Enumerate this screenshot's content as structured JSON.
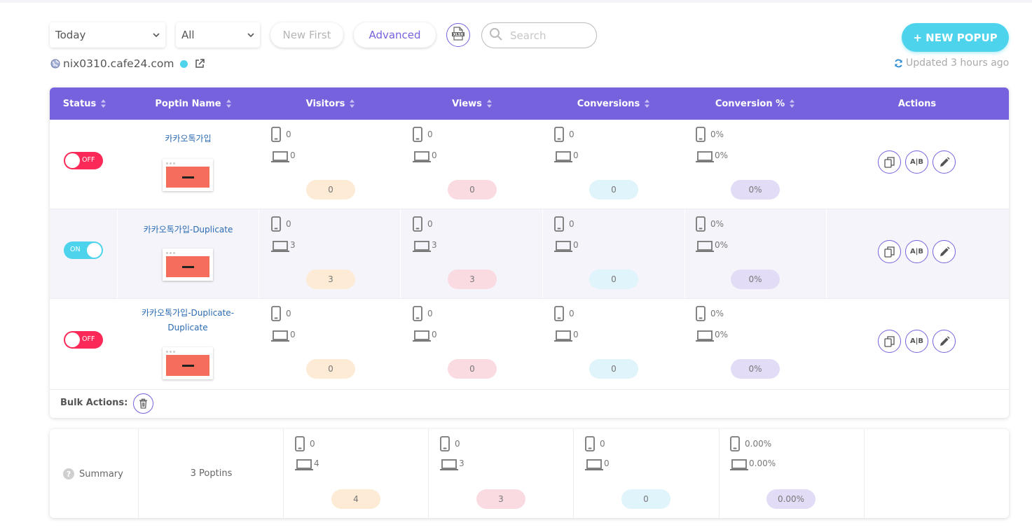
{
  "toolbar": {
    "date_filter": "Today",
    "type_filter": "All",
    "new_first_label": "New First",
    "advanced_label": "Advanced",
    "export_icon_text": "XLSX",
    "search_placeholder": "Search",
    "new_popup_label": "+ NEW POPUP"
  },
  "site": {
    "domain": "nix0310.cafe24.com",
    "status_color": "#4dd4ec"
  },
  "updated_text": "Updated 3 hours ago",
  "table": {
    "headers": {
      "status": "Status",
      "name": "Poptin Name",
      "visitors": "Visitors",
      "views": "Views",
      "conversions": "Conversions",
      "conversion_pct": "Conversion %",
      "actions": "Actions"
    },
    "header_color": "#7662dd",
    "rows": [
      {
        "status": "OFF",
        "name": "카카오톡가입",
        "visitors": {
          "mobile": "0",
          "desktop": "0",
          "total": "0"
        },
        "views": {
          "mobile": "0",
          "desktop": "0",
          "total": "0"
        },
        "conversions": {
          "mobile": "0",
          "desktop": "0",
          "total": "0"
        },
        "conversion_pct": {
          "mobile": "0%",
          "desktop": "0%",
          "total": "0%"
        }
      },
      {
        "status": "ON",
        "name": "카카오톡가입-Duplicate",
        "visitors": {
          "mobile": "0",
          "desktop": "3",
          "total": "3"
        },
        "views": {
          "mobile": "0",
          "desktop": "3",
          "total": "3"
        },
        "conversions": {
          "mobile": "0",
          "desktop": "0",
          "total": "0"
        },
        "conversion_pct": {
          "mobile": "0%",
          "desktop": "0%",
          "total": "0%"
        }
      },
      {
        "status": "OFF",
        "name": "카카오톡가입-Duplicate-Duplicate",
        "visitors": {
          "mobile": "0",
          "desktop": "0",
          "total": "0"
        },
        "views": {
          "mobile": "0",
          "desktop": "0",
          "total": "0"
        },
        "conversions": {
          "mobile": "0",
          "desktop": "0",
          "total": "0"
        },
        "conversion_pct": {
          "mobile": "0%",
          "desktop": "0%",
          "total": "0%"
        }
      }
    ],
    "action_ab_label": "A|B",
    "bulk_actions_label": "Bulk Actions:"
  },
  "summary": {
    "label": "Summary",
    "count": "3 Poptins",
    "visitors": {
      "mobile": "0",
      "desktop": "4",
      "total": "4"
    },
    "views": {
      "mobile": "0",
      "desktop": "3",
      "total": "3"
    },
    "conversions": {
      "mobile": "0",
      "desktop": "0",
      "total": "0"
    },
    "conversion_pct": {
      "mobile": "0.00%",
      "desktop": "0.00%",
      "total": "0.00%"
    }
  },
  "colors": {
    "accent": "#7662dd",
    "cyan": "#4dd4ec",
    "off_red": "#fa2957",
    "link_blue": "#2a6bb3"
  },
  "icons": {
    "export": "xlsx-file-icon",
    "search": "search-icon",
    "globe": "globe-icon",
    "external": "external-link-icon",
    "refresh": "refresh-icon",
    "mobile": "mobile-phone-icon",
    "desktop": "laptop-icon",
    "copy": "copy-icon",
    "edit": "pencil-icon",
    "delete": "trash-icon",
    "help": "question-icon"
  }
}
